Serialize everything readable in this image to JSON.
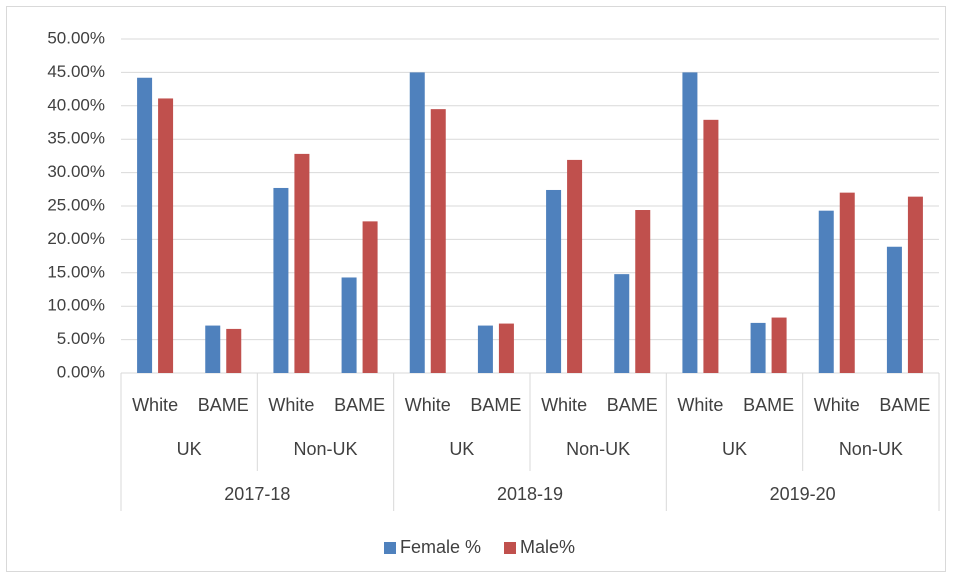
{
  "chart_data": {
    "type": "bar",
    "categories": [
      {
        "level1": "White",
        "level2": "UK",
        "level3": "2017-18"
      },
      {
        "level1": "BAME",
        "level2": "UK",
        "level3": "2017-18"
      },
      {
        "level1": "White",
        "level2": "Non-UK",
        "level3": "2017-18"
      },
      {
        "level1": "BAME",
        "level2": "Non-UK",
        "level3": "2017-18"
      },
      {
        "level1": "White",
        "level2": "UK",
        "level3": "2018-19"
      },
      {
        "level1": "BAME",
        "level2": "UK",
        "level3": "2018-19"
      },
      {
        "level1": "White",
        "level2": "Non-UK",
        "level3": "2018-19"
      },
      {
        "level1": "BAME",
        "level2": "Non-UK",
        "level3": "2018-19"
      },
      {
        "level1": "White",
        "level2": "UK",
        "level3": "2019-20"
      },
      {
        "level1": "BAME",
        "level2": "UK",
        "level3": "2019-20"
      },
      {
        "level1": "White",
        "level2": "Non-UK",
        "level3": "2019-20"
      },
      {
        "level1": "BAME",
        "level2": "Non-UK",
        "level3": "2019-20"
      }
    ],
    "level2_groups": [
      "UK",
      "Non-UK",
      "UK",
      "Non-UK",
      "UK",
      "Non-UK"
    ],
    "level3_groups": [
      "2017-18",
      "2018-19",
      "2019-20"
    ],
    "series": [
      {
        "name": "Female %",
        "color": "#4f81bd",
        "values": [
          44.2,
          7.1,
          27.7,
          14.3,
          45.0,
          7.1,
          27.4,
          14.8,
          45.0,
          7.5,
          24.3,
          18.9
        ]
      },
      {
        "name": "Male%",
        "color": "#c0504d",
        "values": [
          41.1,
          6.6,
          32.8,
          22.7,
          39.5,
          7.4,
          31.9,
          24.4,
          37.9,
          8.3,
          27.0,
          26.4
        ]
      }
    ],
    "y_ticks": [
      "0.00%",
      "5.00%",
      "10.00%",
      "15.00%",
      "20.00%",
      "25.00%",
      "30.00%",
      "35.00%",
      "40.00%",
      "45.00%",
      "50.00%"
    ],
    "ylim": [
      0,
      50
    ],
    "grid": true,
    "legend_position": "bottom"
  }
}
